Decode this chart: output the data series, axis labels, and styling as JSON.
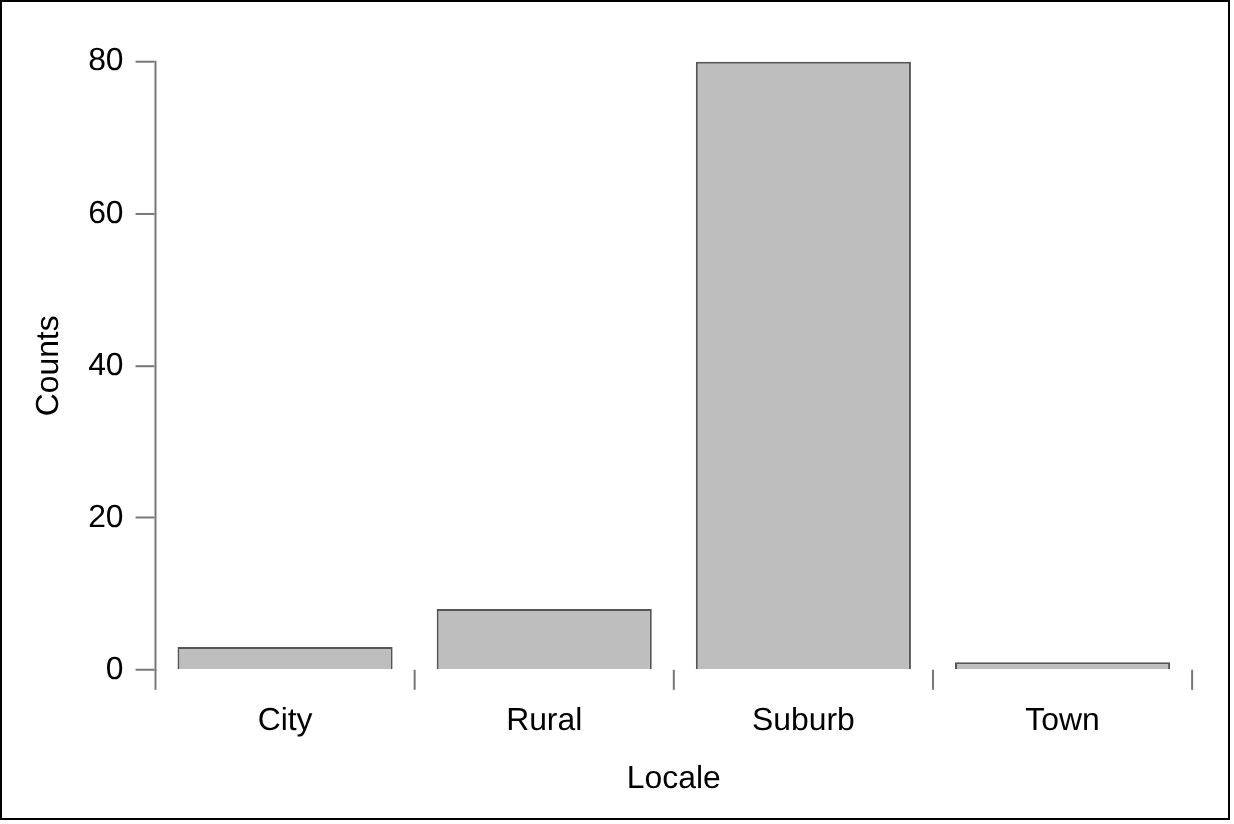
{
  "chart_data": {
    "type": "bar",
    "xlabel": "Locale",
    "ylabel": "Counts",
    "categories": [
      "City",
      "Rural",
      "Suburb",
      "Town"
    ],
    "values": [
      3,
      8,
      80,
      1
    ],
    "color": "#bebebe",
    "ylim": [
      0,
      80
    ],
    "yticks": [
      0,
      20,
      40,
      60,
      80
    ],
    "grid": false,
    "legend": false
  }
}
